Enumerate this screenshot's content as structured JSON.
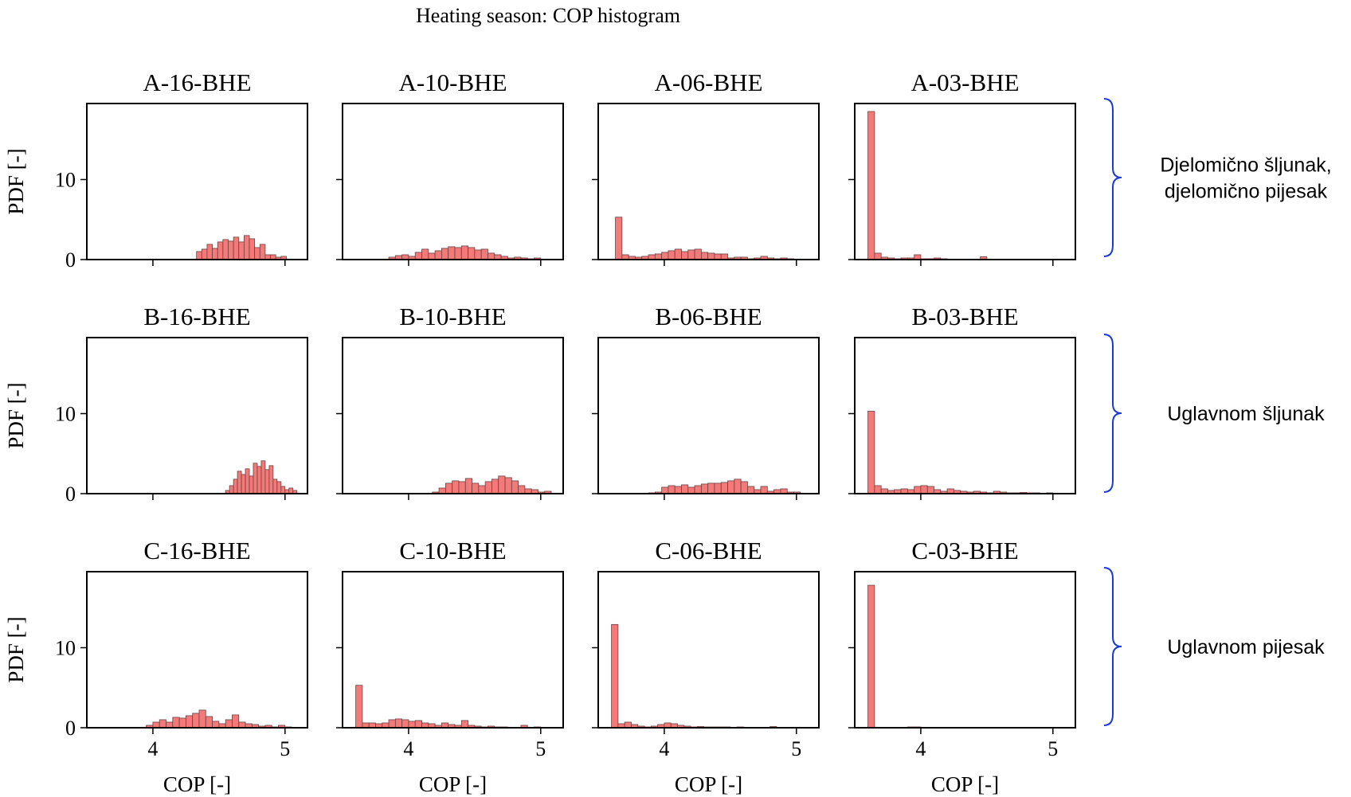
{
  "figure_title": "Heating season: COP histogram",
  "colors": {
    "bar_fill": "#f47a7a",
    "bar_edge": "#6a4040",
    "brace": "#1a3ad6",
    "axis": "#000000"
  },
  "group_labels": [
    [
      "Djelomično šljunak,",
      "djelomično pijesak"
    ],
    [
      "Uglavnom šljunak"
    ],
    [
      "Uglavnom pijesak"
    ]
  ],
  "chart_data": [
    {
      "type": "bar",
      "title": "A-16-BHE",
      "xlabel": "",
      "ylabel": "PDF [-]",
      "xlim": [
        3.5,
        5.17
      ],
      "ylim": [
        0,
        19.5
      ],
      "x_ticks": [
        4,
        5
      ],
      "y_ticks": [
        0,
        10
      ],
      "show_x_ticklabels": false,
      "bin_edges": [
        4.33,
        4.37,
        4.41,
        4.45,
        4.49,
        4.53,
        4.57,
        4.61,
        4.65,
        4.69,
        4.73,
        4.77,
        4.81,
        4.85,
        4.89,
        4.93,
        4.97,
        5.01
      ],
      "values": [
        1.0,
        1.3,
        1.9,
        1.4,
        2.2,
        2.5,
        2.3,
        2.8,
        2.2,
        3.0,
        2.6,
        1.5,
        1.9,
        0.6,
        0.6,
        0.3,
        0.4
      ]
    },
    {
      "type": "bar",
      "title": "A-10-BHE",
      "xlabel": "",
      "ylabel": "",
      "xlim": [
        3.5,
        5.17
      ],
      "ylim": [
        0,
        19.5
      ],
      "x_ticks": [
        4,
        5
      ],
      "y_ticks": [
        0,
        10
      ],
      "show_x_ticklabels": false,
      "bin_edges": [
        3.85,
        3.9,
        3.95,
        4.0,
        4.05,
        4.1,
        4.15,
        4.2,
        4.25,
        4.3,
        4.35,
        4.4,
        4.45,
        4.5,
        4.55,
        4.6,
        4.65,
        4.7,
        4.75,
        4.8,
        4.85,
        4.9,
        4.95,
        5.0
      ],
      "values": [
        0.3,
        0.5,
        0.6,
        0.4,
        0.9,
        1.3,
        0.8,
        1.1,
        1.4,
        1.6,
        1.5,
        1.7,
        1.5,
        1.2,
        1.3,
        0.8,
        0.6,
        0.4,
        0.2,
        0.3,
        0.2,
        0.1,
        0.2
      ]
    },
    {
      "type": "bar",
      "title": "A-06-BHE",
      "xlabel": "",
      "ylabel": "",
      "xlim": [
        3.5,
        5.17
      ],
      "ylim": [
        0,
        19.5
      ],
      "x_ticks": [
        4,
        5
      ],
      "y_ticks": [
        0,
        10
      ],
      "show_x_ticklabels": false,
      "bin_edges": [
        3.63,
        3.68,
        3.73,
        3.78,
        3.83,
        3.88,
        3.93,
        3.98,
        4.03,
        4.08,
        4.13,
        4.18,
        4.23,
        4.28,
        4.33,
        4.38,
        4.43,
        4.48,
        4.53,
        4.58,
        4.63,
        4.68,
        4.73,
        4.78,
        4.83,
        4.88,
        4.93,
        4.98
      ],
      "values": [
        5.3,
        0.6,
        0.4,
        0.3,
        0.4,
        0.6,
        0.7,
        0.9,
        1.1,
        1.3,
        1.0,
        1.2,
        1.3,
        0.9,
        0.8,
        0.7,
        0.7,
        0.2,
        0.3,
        0.3,
        0.1,
        0.2,
        0.4,
        0.2,
        0.1,
        0.2,
        0.1
      ]
    },
    {
      "type": "bar",
      "title": "A-03-BHE",
      "xlabel": "",
      "ylabel": "",
      "xlim": [
        3.5,
        5.17
      ],
      "ylim": [
        0,
        19.5
      ],
      "x_ticks": [
        4,
        5
      ],
      "y_ticks": [
        0,
        10
      ],
      "show_x_ticklabels": false,
      "bin_edges": [
        3.6,
        3.65,
        3.7,
        3.75,
        3.8,
        3.85,
        3.9,
        3.95,
        4.0,
        4.05,
        4.1,
        4.15,
        4.2,
        4.25,
        4.3,
        4.35,
        4.4,
        4.45,
        4.5,
        4.55,
        4.6
      ],
      "values": [
        18.5,
        0.8,
        0.3,
        0.2,
        0.1,
        0.2,
        0.2,
        0.6,
        0.1,
        0.1,
        0.2,
        0.1,
        0.05,
        0.05,
        0.05,
        0.05,
        0.05,
        0.35,
        0.05,
        0.05
      ]
    },
    {
      "type": "bar",
      "title": "B-16-BHE",
      "xlabel": "",
      "ylabel": "PDF [-]",
      "xlim": [
        3.5,
        5.17
      ],
      "ylim": [
        0,
        19.5
      ],
      "x_ticks": [
        4,
        5
      ],
      "y_ticks": [
        0,
        10
      ],
      "show_x_ticklabels": false,
      "bin_edges": [
        4.55,
        4.58,
        4.61,
        4.64,
        4.67,
        4.7,
        4.73,
        4.76,
        4.79,
        4.82,
        4.85,
        4.88,
        4.91,
        4.94,
        4.97,
        5.0,
        5.03,
        5.06,
        5.09
      ],
      "values": [
        0.4,
        1.0,
        1.8,
        2.8,
        2.4,
        3.1,
        2.2,
        3.8,
        3.4,
        4.1,
        3.0,
        3.5,
        1.8,
        1.5,
        0.9,
        0.5,
        0.7,
        0.4
      ]
    },
    {
      "type": "bar",
      "title": "B-10-BHE",
      "xlabel": "",
      "ylabel": "",
      "xlim": [
        3.5,
        5.17
      ],
      "ylim": [
        0,
        19.5
      ],
      "x_ticks": [
        4,
        5
      ],
      "y_ticks": [
        0,
        10
      ],
      "show_x_ticklabels": false,
      "bin_edges": [
        4.18,
        4.23,
        4.28,
        4.33,
        4.38,
        4.43,
        4.48,
        4.53,
        4.58,
        4.63,
        4.68,
        4.73,
        4.78,
        4.83,
        4.88,
        4.93,
        4.98,
        5.03,
        5.08
      ],
      "values": [
        0.2,
        0.7,
        1.3,
        1.6,
        1.5,
        1.9,
        1.3,
        1.0,
        1.5,
        1.8,
        2.2,
        2.0,
        1.6,
        1.0,
        0.6,
        0.5,
        0.2,
        0.3
      ]
    },
    {
      "type": "bar",
      "title": "B-06-BHE",
      "xlabel": "",
      "ylabel": "",
      "xlim": [
        3.5,
        5.17
      ],
      "ylim": [
        0,
        19.5
      ],
      "x_ticks": [
        4,
        5
      ],
      "y_ticks": [
        0,
        10
      ],
      "show_x_ticklabels": false,
      "bin_edges": [
        3.83,
        3.88,
        3.93,
        3.98,
        4.03,
        4.08,
        4.13,
        4.18,
        4.23,
        4.28,
        4.33,
        4.38,
        4.43,
        4.48,
        4.53,
        4.58,
        4.63,
        4.68,
        4.73,
        4.78,
        4.83,
        4.88,
        4.93,
        4.98,
        5.03
      ],
      "values": [
        0.05,
        0.1,
        0.2,
        0.8,
        1.0,
        0.9,
        1.1,
        0.8,
        1.0,
        1.2,
        1.3,
        1.3,
        1.4,
        1.6,
        1.8,
        1.5,
        0.9,
        0.5,
        0.9,
        0.3,
        0.5,
        0.6,
        0.2,
        0.2
      ]
    },
    {
      "type": "bar",
      "title": "B-03-BHE",
      "xlabel": "",
      "ylabel": "",
      "xlim": [
        3.5,
        5.17
      ],
      "ylim": [
        0,
        19.5
      ],
      "x_ticks": [
        4,
        5
      ],
      "y_ticks": [
        0,
        10
      ],
      "show_x_ticklabels": false,
      "bin_edges": [
        3.6,
        3.65,
        3.7,
        3.75,
        3.8,
        3.85,
        3.9,
        3.95,
        4.0,
        4.05,
        4.1,
        4.15,
        4.2,
        4.25,
        4.3,
        4.35,
        4.4,
        4.45,
        4.5,
        4.55,
        4.6,
        4.65,
        4.7,
        4.75,
        4.8,
        4.85,
        4.9,
        4.95,
        5.0
      ],
      "values": [
        10.3,
        1.0,
        0.6,
        0.4,
        0.5,
        0.6,
        0.5,
        0.9,
        1.0,
        0.9,
        0.5,
        0.3,
        0.6,
        0.4,
        0.3,
        0.2,
        0.3,
        0.2,
        0.1,
        0.3,
        0.2,
        0.1,
        0.1,
        0.15,
        0.1,
        0.1,
        0.05,
        0.1
      ]
    },
    {
      "type": "bar",
      "title": "C-16-BHE",
      "xlabel": "COP [-]",
      "ylabel": "PDF [-]",
      "xlim": [
        3.5,
        5.17
      ],
      "ylim": [
        0,
        19.5
      ],
      "x_ticks": [
        4,
        5
      ],
      "y_ticks": [
        0,
        10
      ],
      "show_x_ticklabels": true,
      "bin_edges": [
        3.95,
        4.0,
        4.05,
        4.1,
        4.15,
        4.2,
        4.25,
        4.3,
        4.35,
        4.4,
        4.45,
        4.5,
        4.55,
        4.6,
        4.65,
        4.7,
        4.75,
        4.8,
        4.85,
        4.9,
        4.95,
        5.0,
        5.05
      ],
      "values": [
        0.3,
        0.7,
        1.0,
        0.7,
        1.3,
        1.2,
        1.5,
        1.8,
        2.2,
        1.4,
        0.8,
        0.5,
        1.0,
        1.6,
        0.7,
        0.5,
        0.4,
        0.2,
        0.3,
        0.1,
        0.3,
        0.1
      ]
    },
    {
      "type": "bar",
      "title": "C-10-BHE",
      "xlabel": "COP [-]",
      "ylabel": "",
      "xlim": [
        3.5,
        5.17
      ],
      "ylim": [
        0,
        19.5
      ],
      "x_ticks": [
        4,
        5
      ],
      "y_ticks": [
        0,
        10
      ],
      "show_x_ticklabels": true,
      "bin_edges": [
        3.6,
        3.65,
        3.7,
        3.75,
        3.8,
        3.85,
        3.9,
        3.95,
        4.0,
        4.05,
        4.1,
        4.15,
        4.2,
        4.25,
        4.3,
        4.35,
        4.4,
        4.45,
        4.5,
        4.55,
        4.6,
        4.65,
        4.7,
        4.75,
        4.8,
        4.85,
        4.9,
        4.95,
        5.0,
        5.05
      ],
      "values": [
        5.3,
        0.6,
        0.6,
        0.5,
        0.6,
        1.0,
        1.1,
        1.0,
        0.8,
        0.9,
        0.6,
        0.5,
        0.3,
        0.6,
        0.4,
        0.3,
        0.9,
        0.3,
        0.2,
        0.1,
        0.2,
        0.1,
        0.1,
        0.05,
        0.05,
        0.3,
        0.05,
        0.1,
        0.05
      ]
    },
    {
      "type": "bar",
      "title": "C-06-BHE",
      "xlabel": "COP [-]",
      "ylabel": "",
      "xlim": [
        3.5,
        5.17
      ],
      "ylim": [
        0,
        19.5
      ],
      "x_ticks": [
        4,
        5
      ],
      "y_ticks": [
        0,
        10
      ],
      "show_x_ticklabels": true,
      "bin_edges": [
        3.6,
        3.65,
        3.7,
        3.75,
        3.8,
        3.85,
        3.9,
        3.95,
        4.0,
        4.05,
        4.1,
        4.15,
        4.2,
        4.25,
        4.3,
        4.35,
        4.4,
        4.45,
        4.5,
        4.55,
        4.6,
        4.65,
        4.7,
        4.75,
        4.8,
        4.85,
        4.9,
        4.95,
        5.0
      ],
      "values": [
        12.9,
        0.5,
        0.7,
        0.4,
        0.2,
        0.1,
        0.2,
        0.4,
        0.6,
        0.5,
        0.3,
        0.2,
        0.1,
        0.15,
        0.1,
        0.1,
        0.1,
        0.1,
        0.05,
        0.1,
        0.05,
        0.05,
        0.05,
        0.05,
        0.15,
        0.05,
        0.05,
        0.05
      ]
    },
    {
      "type": "bar",
      "title": "C-03-BHE",
      "xlabel": "COP [-]",
      "ylabel": "",
      "xlim": [
        3.5,
        5.17
      ],
      "ylim": [
        0,
        19.5
      ],
      "x_ticks": [
        4,
        5
      ],
      "y_ticks": [
        0,
        10
      ],
      "show_x_ticklabels": true,
      "bin_edges": [
        3.6,
        3.65,
        3.7,
        3.75,
        3.8,
        3.85,
        3.9,
        3.95,
        4.0,
        4.05,
        4.1,
        4.15,
        4.2,
        4.25,
        4.3,
        4.35,
        4.4,
        4.45,
        4.5,
        4.55,
        4.6,
        4.65,
        4.7,
        4.75,
        4.8,
        4.85,
        4.9,
        4.95,
        5.0
      ],
      "values": [
        17.8,
        0.05,
        0.05,
        0.05,
        0.05,
        0.05,
        0.1,
        0.1,
        0.05,
        0.05,
        0.05,
        0.05,
        0.05,
        0.05,
        0.05,
        0.05,
        0.05,
        0.05,
        0.05,
        0.05,
        0.05,
        0.05,
        0.05,
        0.05,
        0.05,
        0.05,
        0.05,
        0.05
      ]
    }
  ]
}
